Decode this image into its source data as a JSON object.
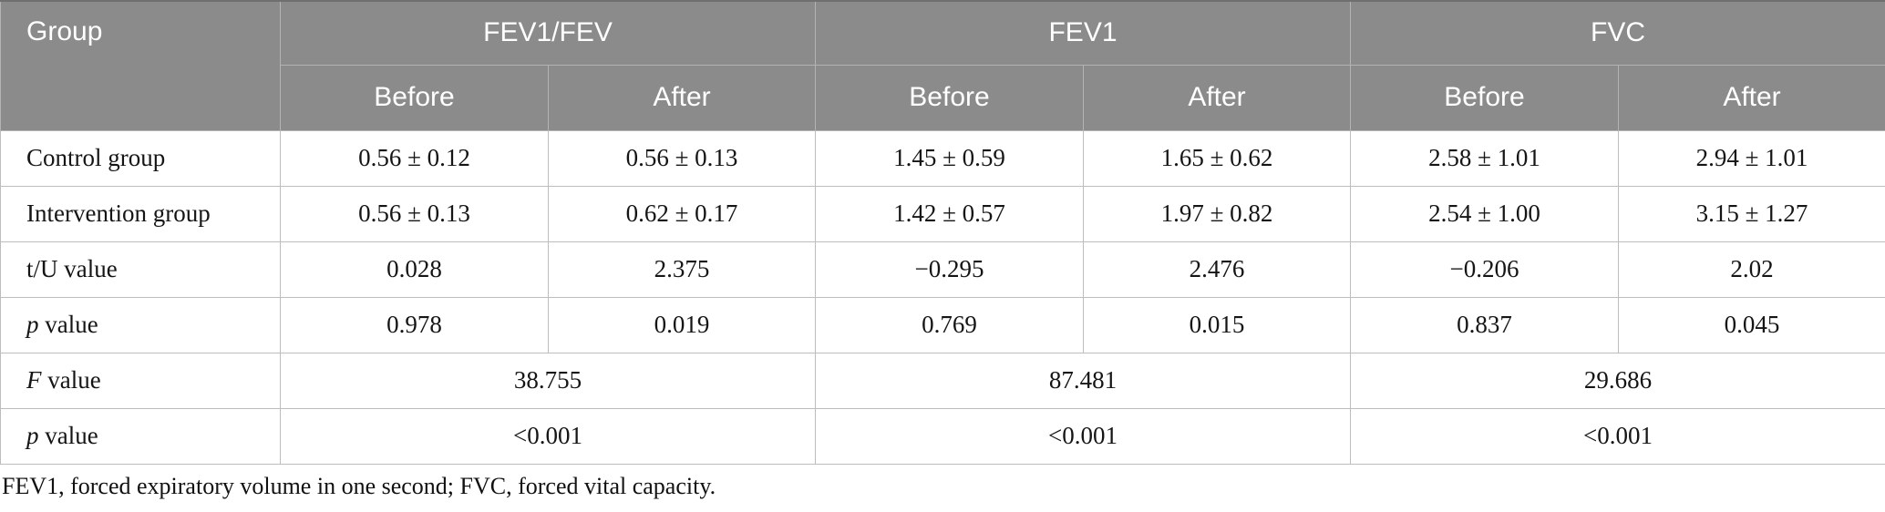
{
  "colors": {
    "header_bg": "#8b8b8b",
    "header_text": "#ffffff",
    "header_border": "#b3b3b3",
    "body_border": "#bdbdbd",
    "body_text": "#151515",
    "top_edge": "#6f6f6f"
  },
  "table": {
    "corner_header": "Group",
    "group_headers": [
      "FEV1/FEV",
      "FEV1",
      "FVC"
    ],
    "sub_headers": [
      "Before",
      "After",
      "Before",
      "After",
      "Before",
      "After"
    ],
    "rows": [
      {
        "label_parts": [
          {
            "text": "Control group",
            "italic": false
          }
        ],
        "cell_span": 1,
        "cells": [
          "0.56 ± 0.12",
          "0.56 ± 0.13",
          "1.45 ± 0.59",
          "1.65 ± 0.62",
          "2.58 ± 1.01",
          "2.94 ± 1.01"
        ]
      },
      {
        "label_parts": [
          {
            "text": "Intervention group",
            "italic": false
          }
        ],
        "cell_span": 1,
        "cells": [
          "0.56 ± 0.13",
          "0.62 ± 0.17",
          "1.42 ± 0.57",
          "1.97 ± 0.82",
          "2.54 ± 1.00",
          "3.15 ± 1.27"
        ]
      },
      {
        "label_parts": [
          {
            "text": "t/U value",
            "italic": false
          }
        ],
        "cell_span": 1,
        "cells": [
          "0.028",
          "2.375",
          "−0.295",
          "2.476",
          "−0.206",
          "2.02"
        ]
      },
      {
        "label_parts": [
          {
            "text": "p",
            "italic": true
          },
          {
            "text": " value",
            "italic": false
          }
        ],
        "cell_span": 1,
        "cells": [
          "0.978",
          "0.019",
          "0.769",
          "0.015",
          "0.837",
          "0.045"
        ]
      },
      {
        "label_parts": [
          {
            "text": "F",
            "italic": true
          },
          {
            "text": " value",
            "italic": false
          }
        ],
        "cell_span": 2,
        "cells": [
          "38.755",
          "87.481",
          "29.686"
        ]
      },
      {
        "label_parts": [
          {
            "text": "p",
            "italic": true
          },
          {
            "text": " value",
            "italic": false
          }
        ],
        "cell_span": 2,
        "cells": [
          "<0.001",
          "<0.001",
          "<0.001"
        ]
      }
    ],
    "footnote": "FEV1, forced expiratory volume in one second; FVC, forced vital capacity."
  }
}
